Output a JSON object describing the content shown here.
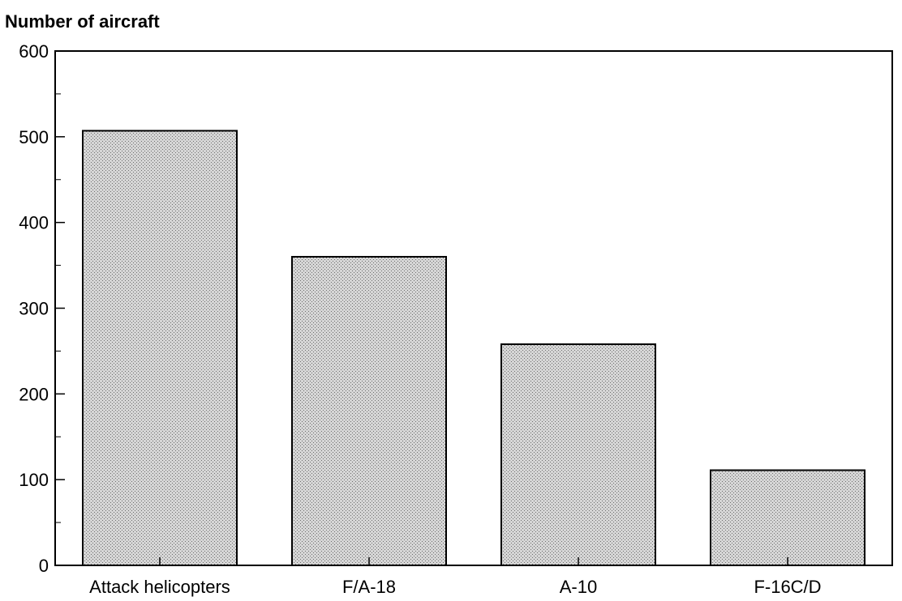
{
  "chart_data": {
    "type": "bar",
    "title": "",
    "xlabel": "",
    "ylabel": "Number of aircraft",
    "categories": [
      "Attack helicopters",
      "F/A-18",
      "A-10",
      "F-16C/D"
    ],
    "values": [
      507,
      360,
      258,
      111
    ],
    "ylim": [
      0,
      600
    ],
    "yticks": [
      "0",
      "100",
      "200",
      "300",
      "400",
      "500",
      "600"
    ],
    "grid": false,
    "legend": "none",
    "bar_fill": "#c4c4c4",
    "bar_pattern": "stippled"
  }
}
